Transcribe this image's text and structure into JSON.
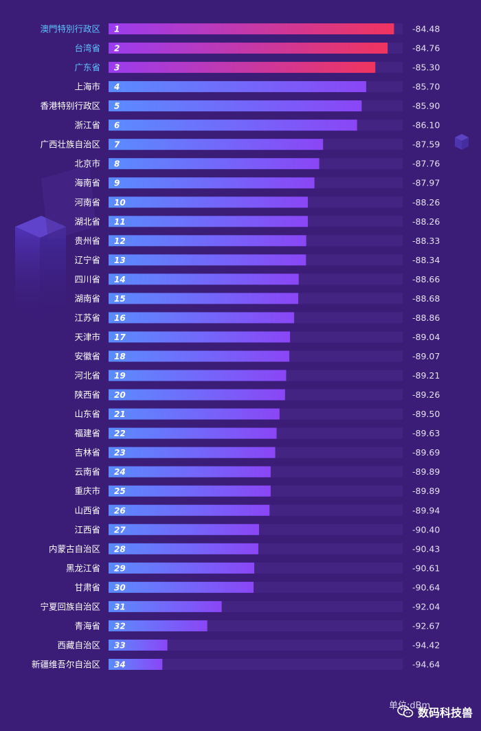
{
  "colors": {
    "background": "#3b1d78",
    "track": "#4a2a8a",
    "top_label": "#5fc3ff",
    "label": "#ffffff",
    "top_bar_start": "#9a3cf0",
    "top_bar_end": "#f0345f",
    "bar_start": "#5a8cff",
    "bar_end": "#8a46f5"
  },
  "footer": {
    "unit_label": "单位:dBm"
  },
  "watermark": {
    "text": "数码科技兽",
    "icon": "wechat-icon"
  },
  "chart_data": {
    "type": "bar",
    "orientation": "horizontal",
    "unit": "dBm",
    "highlighted_top": 3,
    "xlim": [
      -97,
      -84.1
    ],
    "categories": [
      "澳門特別行政区",
      "台湾省",
      "广东省",
      "上海市",
      "香港特别行政区",
      "浙江省",
      "广西壮族自治区",
      "北京市",
      "海南省",
      "河南省",
      "湖北省",
      "贵州省",
      "辽宁省",
      "四川省",
      "湖南省",
      "江苏省",
      "天津市",
      "安徽省",
      "河北省",
      "陕西省",
      "山东省",
      "福建省",
      "吉林省",
      "云南省",
      "重庆市",
      "山西省",
      "江西省",
      "内蒙古自治区",
      "黑龙江省",
      "甘肃省",
      "宁夏回族自治区",
      "青海省",
      "西藏自治区",
      "新疆维吾尔自治区"
    ],
    "ranks": [
      1,
      2,
      3,
      4,
      5,
      6,
      7,
      8,
      9,
      10,
      11,
      12,
      13,
      14,
      15,
      16,
      17,
      18,
      19,
      20,
      21,
      22,
      23,
      24,
      25,
      26,
      27,
      28,
      29,
      30,
      31,
      32,
      33,
      34
    ],
    "values": [
      -84.48,
      -84.76,
      -85.3,
      -85.7,
      -85.9,
      -86.1,
      -87.59,
      -87.76,
      -87.97,
      -88.26,
      -88.26,
      -88.33,
      -88.34,
      -88.66,
      -88.68,
      -88.86,
      -89.04,
      -89.07,
      -89.21,
      -89.26,
      -89.5,
      -89.63,
      -89.69,
      -89.89,
      -89.89,
      -89.94,
      -90.4,
      -90.43,
      -90.61,
      -90.64,
      -92.04,
      -92.67,
      -94.42,
      -94.64
    ],
    "value_labels": [
      "-84.48",
      "-84.76",
      "-85.30",
      "-85.70",
      "-85.90",
      "-86.10",
      "-87.59",
      "-87.76",
      "-87.97",
      "-88.26",
      "-88.26",
      "-88.33",
      "-88.34",
      "-88.66",
      "-88.68",
      "-88.86",
      "-89.04",
      "-89.07",
      "-89.21",
      "-89.26",
      "-89.50",
      "-89.63",
      "-89.69",
      "-89.89",
      "-89.89",
      "-89.94",
      "-90.40",
      "-90.43",
      "-90.61",
      "-90.64",
      "-92.04",
      "-92.67",
      "-94.42",
      "-94.64"
    ]
  }
}
